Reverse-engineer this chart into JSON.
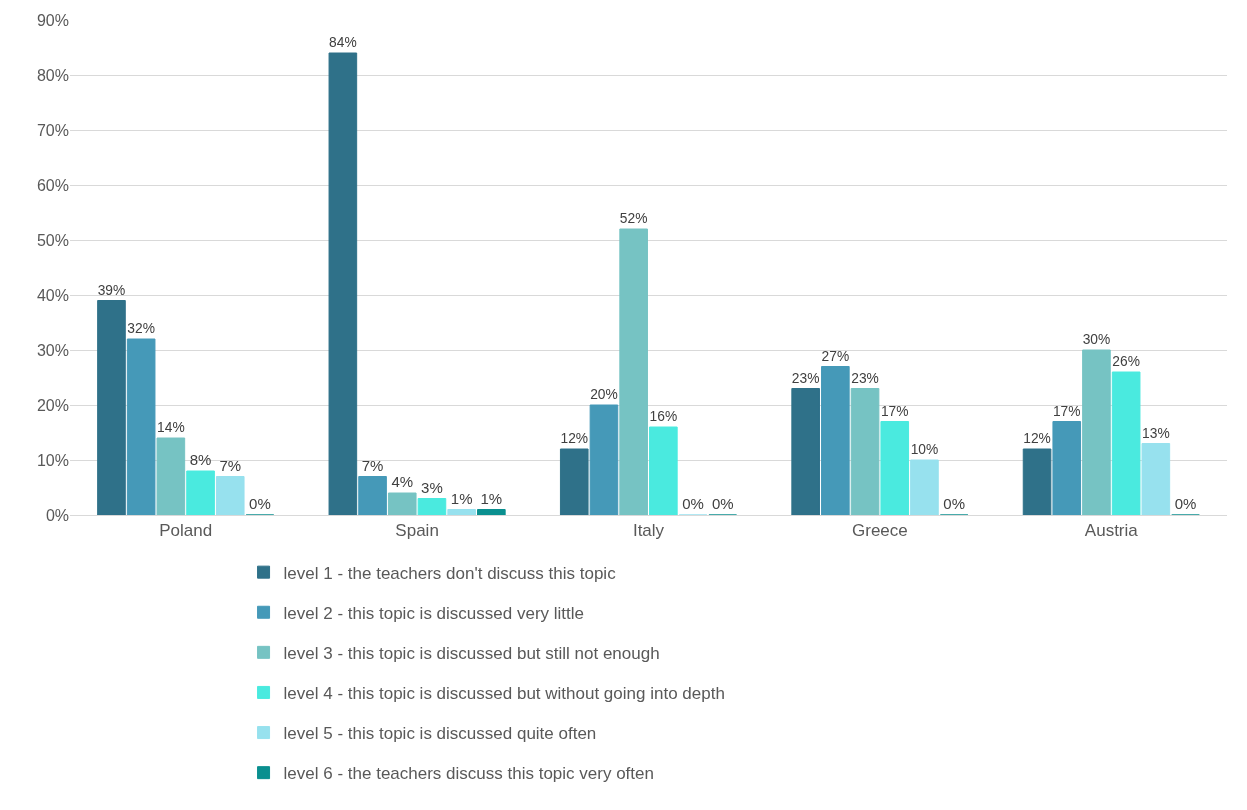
{
  "chart_data": {
    "type": "bar",
    "categories": [
      "Poland",
      "Spain",
      "Italy",
      "Greece",
      "Austria"
    ],
    "series": [
      {
        "name": "level 1 - the teachers don't discuss this topic",
        "color": "#2f7189",
        "values": [
          39,
          84,
          12,
          23,
          12
        ],
        "value_labels": [
          "39%",
          "84%",
          "12%",
          "23%",
          "12%"
        ]
      },
      {
        "name": "level 2 - this topic is discussed very little",
        "color": "#4599b8",
        "values": [
          32,
          7,
          20,
          27,
          17
        ],
        "value_labels": [
          "32%",
          "7%",
          "20%",
          "27%",
          "17%"
        ]
      },
      {
        "name": "level 3 - this topic is discussed but still not enough",
        "color": "#76c3c3",
        "values": [
          14,
          4,
          52,
          23,
          30
        ],
        "value_labels": [
          "14%",
          "4%",
          "52%",
          "23%",
          "30%"
        ]
      },
      {
        "name": "level 4 - this topic is discussed but without going into depth",
        "color": "#4aeadf",
        "values": [
          8,
          3,
          16,
          17,
          26
        ],
        "value_labels": [
          "8%",
          "3%",
          "16%",
          "17%",
          "26%"
        ]
      },
      {
        "name": "level 5 - this topic is discussed quite often",
        "color": "#97e1ee",
        "values": [
          7,
          1,
          0,
          10,
          13
        ],
        "value_labels": [
          "7%",
          "1%",
          "0%",
          "10%",
          "13%"
        ]
      },
      {
        "name": "level 6 - the teachers discuss this topic very often",
        "color": "#0a8f8f",
        "values": [
          0,
          1,
          0,
          0,
          0
        ],
        "value_labels": [
          "0%",
          "1%",
          "0%",
          "0%",
          "0%"
        ]
      }
    ],
    "ylim": [
      0,
      90
    ],
    "yticks": [
      {
        "value": 0,
        "label": "0%"
      },
      {
        "value": 10,
        "label": "10%"
      },
      {
        "value": 20,
        "label": "20%"
      },
      {
        "value": 30,
        "label": "30%"
      },
      {
        "value": 40,
        "label": "40%"
      },
      {
        "value": 50,
        "label": "50%"
      },
      {
        "value": 60,
        "label": "60%"
      },
      {
        "value": 70,
        "label": "70%"
      },
      {
        "value": 80,
        "label": "80%"
      },
      {
        "value": 90,
        "label": "90%"
      }
    ],
    "grid": "y",
    "legend": "bottom"
  }
}
